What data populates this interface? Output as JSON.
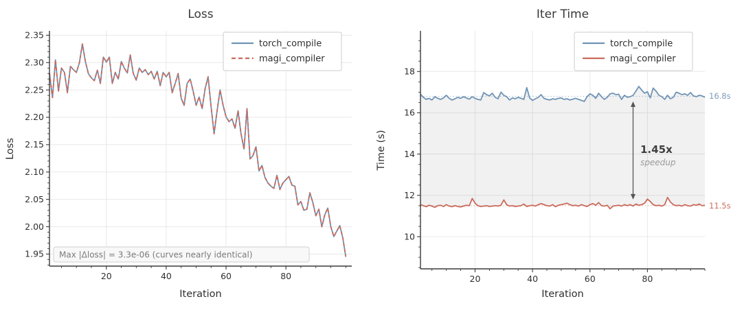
{
  "page": {
    "background": "#ffffff"
  },
  "colors": {
    "torch": "#6f93b5",
    "magi": "#c96a5a",
    "grid": "#e8e8e8",
    "spine": "#3a3a3a",
    "tick": "#3a3a3a",
    "legend_border": "#cccccc",
    "legend_bg": "#ffffff",
    "note_bg": "#f8f8f8",
    "note_border": "#cfcfcf",
    "fill_between": "#777777",
    "arrow": "#555555",
    "ref_torch": "#9fb8ce",
    "ref_magi": "#d9a89d",
    "end_label_torch": "#7d9cba",
    "end_label_magi": "#c97261"
  },
  "chart_data": [
    {
      "type": "line",
      "title": "Loss",
      "xlabel": "Iteration",
      "ylabel": "Loss",
      "xlim": [
        1,
        102
      ],
      "ylim": [
        1.928,
        2.358
      ],
      "xticks": [
        20,
        40,
        60,
        80
      ],
      "xtick_labels": [
        "20",
        "40",
        "60",
        "80"
      ],
      "x_minor_step": 5,
      "yticks": [
        1.95,
        2.0,
        2.05,
        2.1,
        2.15,
        2.2,
        2.25,
        2.3,
        2.35
      ],
      "ytick_labels": [
        "1.95",
        "2.00",
        "2.05",
        "2.10",
        "2.15",
        "2.20",
        "2.25",
        "2.30",
        "2.35"
      ],
      "y_minor_step": 0.01,
      "grid": true,
      "legend_position": "upper right",
      "annotation": "Max |Δloss| = 3.3e-06  (curves nearly identical)",
      "x_start": 1,
      "y_shared": [
        2.281,
        2.236,
        2.305,
        2.248,
        2.29,
        2.282,
        2.245,
        2.293,
        2.287,
        2.282,
        2.3,
        2.334,
        2.302,
        2.28,
        2.272,
        2.267,
        2.286,
        2.262,
        2.31,
        2.301,
        2.31,
        2.262,
        2.282,
        2.27,
        2.302,
        2.29,
        2.281,
        2.314,
        2.28,
        2.268,
        2.29,
        2.282,
        2.287,
        2.278,
        2.284,
        2.27,
        2.284,
        2.258,
        2.282,
        2.274,
        2.282,
        2.245,
        2.262,
        2.28,
        2.235,
        2.222,
        2.262,
        2.27,
        2.248,
        2.222,
        2.237,
        2.216,
        2.252,
        2.274,
        2.22,
        2.17,
        2.212,
        2.25,
        2.222,
        2.201,
        2.192,
        2.197,
        2.18,
        2.212,
        2.17,
        2.142,
        2.216,
        2.124,
        2.13,
        2.146,
        2.102,
        2.112,
        2.09,
        2.08,
        2.074,
        2.07,
        2.094,
        2.068,
        2.08,
        2.086,
        2.092,
        2.076,
        2.074,
        2.04,
        2.046,
        2.03,
        2.032,
        2.062,
        2.044,
        2.02,
        2.032,
        2.0,
        2.022,
        2.034,
        2.0,
        1.982,
        1.992,
        2.002,
        1.98,
        1.945
      ],
      "series": [
        {
          "name": "torch_compile",
          "style": "solid",
          "color_key": "torch"
        },
        {
          "name": "magi_compiler",
          "style": "dashed",
          "color_key": "magi"
        }
      ]
    },
    {
      "type": "line",
      "title": "Iter Time",
      "xlabel": "Iteration",
      "ylabel": "Time (s)",
      "xlim": [
        1,
        100
      ],
      "ylim": [
        8.44,
        19.97
      ],
      "xticks": [
        20,
        40,
        60,
        80
      ],
      "xtick_labels": [
        "20",
        "40",
        "60",
        "80"
      ],
      "x_minor_step": 5,
      "yticks": [
        10,
        12,
        14,
        16,
        18
      ],
      "ytick_labels": [
        "10",
        "12",
        "14",
        "16",
        "18"
      ],
      "y_minor_step": 0.5,
      "grid": true,
      "legend_position": "upper right",
      "fill_between": true,
      "x_start": 1,
      "ref_lines": [
        {
          "y": 16.8,
          "color_key": "ref_torch"
        },
        {
          "y": 11.5,
          "color_key": "ref_magi"
        }
      ],
      "speedup": {
        "value": "1.45x",
        "label": "speedup",
        "arrow_x": 75,
        "arrow_top": 16.55,
        "arrow_bottom": 11.8
      },
      "series": [
        {
          "name": "torch_compile",
          "style": "solid",
          "color_key": "torch",
          "mean": 16.8,
          "mean_label": "16.8s",
          "values": [
            16.9,
            16.75,
            16.65,
            16.7,
            16.62,
            16.78,
            16.7,
            16.65,
            16.72,
            16.85,
            16.7,
            16.62,
            16.68,
            16.75,
            16.7,
            16.78,
            16.72,
            16.66,
            16.78,
            16.7,
            16.65,
            16.62,
            16.98,
            16.88,
            16.82,
            16.95,
            16.75,
            16.68,
            17.0,
            16.85,
            16.78,
            16.62,
            16.72,
            16.68,
            16.75,
            16.7,
            16.65,
            17.22,
            16.72,
            16.6,
            16.68,
            16.75,
            16.88,
            16.7,
            16.65,
            16.62,
            16.68,
            16.65,
            16.7,
            16.72,
            16.65,
            16.68,
            16.62,
            16.66,
            16.7,
            16.65,
            16.6,
            16.55,
            16.78,
            16.92,
            16.85,
            16.7,
            16.95,
            16.78,
            16.65,
            16.75,
            16.92,
            16.95,
            16.88,
            16.9,
            16.65,
            16.85,
            16.75,
            16.78,
            16.85,
            17.05,
            17.28,
            17.1,
            16.95,
            17.02,
            16.72,
            17.2,
            17.05,
            16.85,
            16.78,
            16.65,
            16.85,
            16.68,
            16.75,
            17.0,
            16.95,
            16.88,
            16.92,
            16.85,
            16.98,
            16.82,
            16.78,
            16.85,
            16.82,
            16.75
          ]
        },
        {
          "name": "magi_compiler",
          "style": "solid",
          "color_key": "magi",
          "mean": 11.5,
          "mean_label": "11.5s",
          "values": [
            11.55,
            11.5,
            11.45,
            11.52,
            11.48,
            11.42,
            11.5,
            11.52,
            11.46,
            11.55,
            11.48,
            11.45,
            11.5,
            11.46,
            11.44,
            11.48,
            11.52,
            11.5,
            11.85,
            11.62,
            11.5,
            11.46,
            11.48,
            11.5,
            11.46,
            11.48,
            11.5,
            11.48,
            11.52,
            11.78,
            11.55,
            11.48,
            11.5,
            11.46,
            11.48,
            11.5,
            11.58,
            11.46,
            11.5,
            11.52,
            11.48,
            11.55,
            11.6,
            11.55,
            11.5,
            11.48,
            11.55,
            11.45,
            11.52,
            11.55,
            11.58,
            11.62,
            11.55,
            11.5,
            11.52,
            11.48,
            11.55,
            11.5,
            11.46,
            11.55,
            11.6,
            11.52,
            11.65,
            11.5,
            11.48,
            11.52,
            11.35,
            11.48,
            11.5,
            11.52,
            11.48,
            11.55,
            11.5,
            11.55,
            11.48,
            11.58,
            11.52,
            11.55,
            11.62,
            11.82,
            11.7,
            11.55,
            11.5,
            11.52,
            11.48,
            11.55,
            11.9,
            11.68,
            11.55,
            11.5,
            11.52,
            11.48,
            11.55,
            11.5,
            11.48,
            11.55,
            11.52,
            11.58,
            11.5,
            11.52
          ]
        }
      ]
    }
  ]
}
